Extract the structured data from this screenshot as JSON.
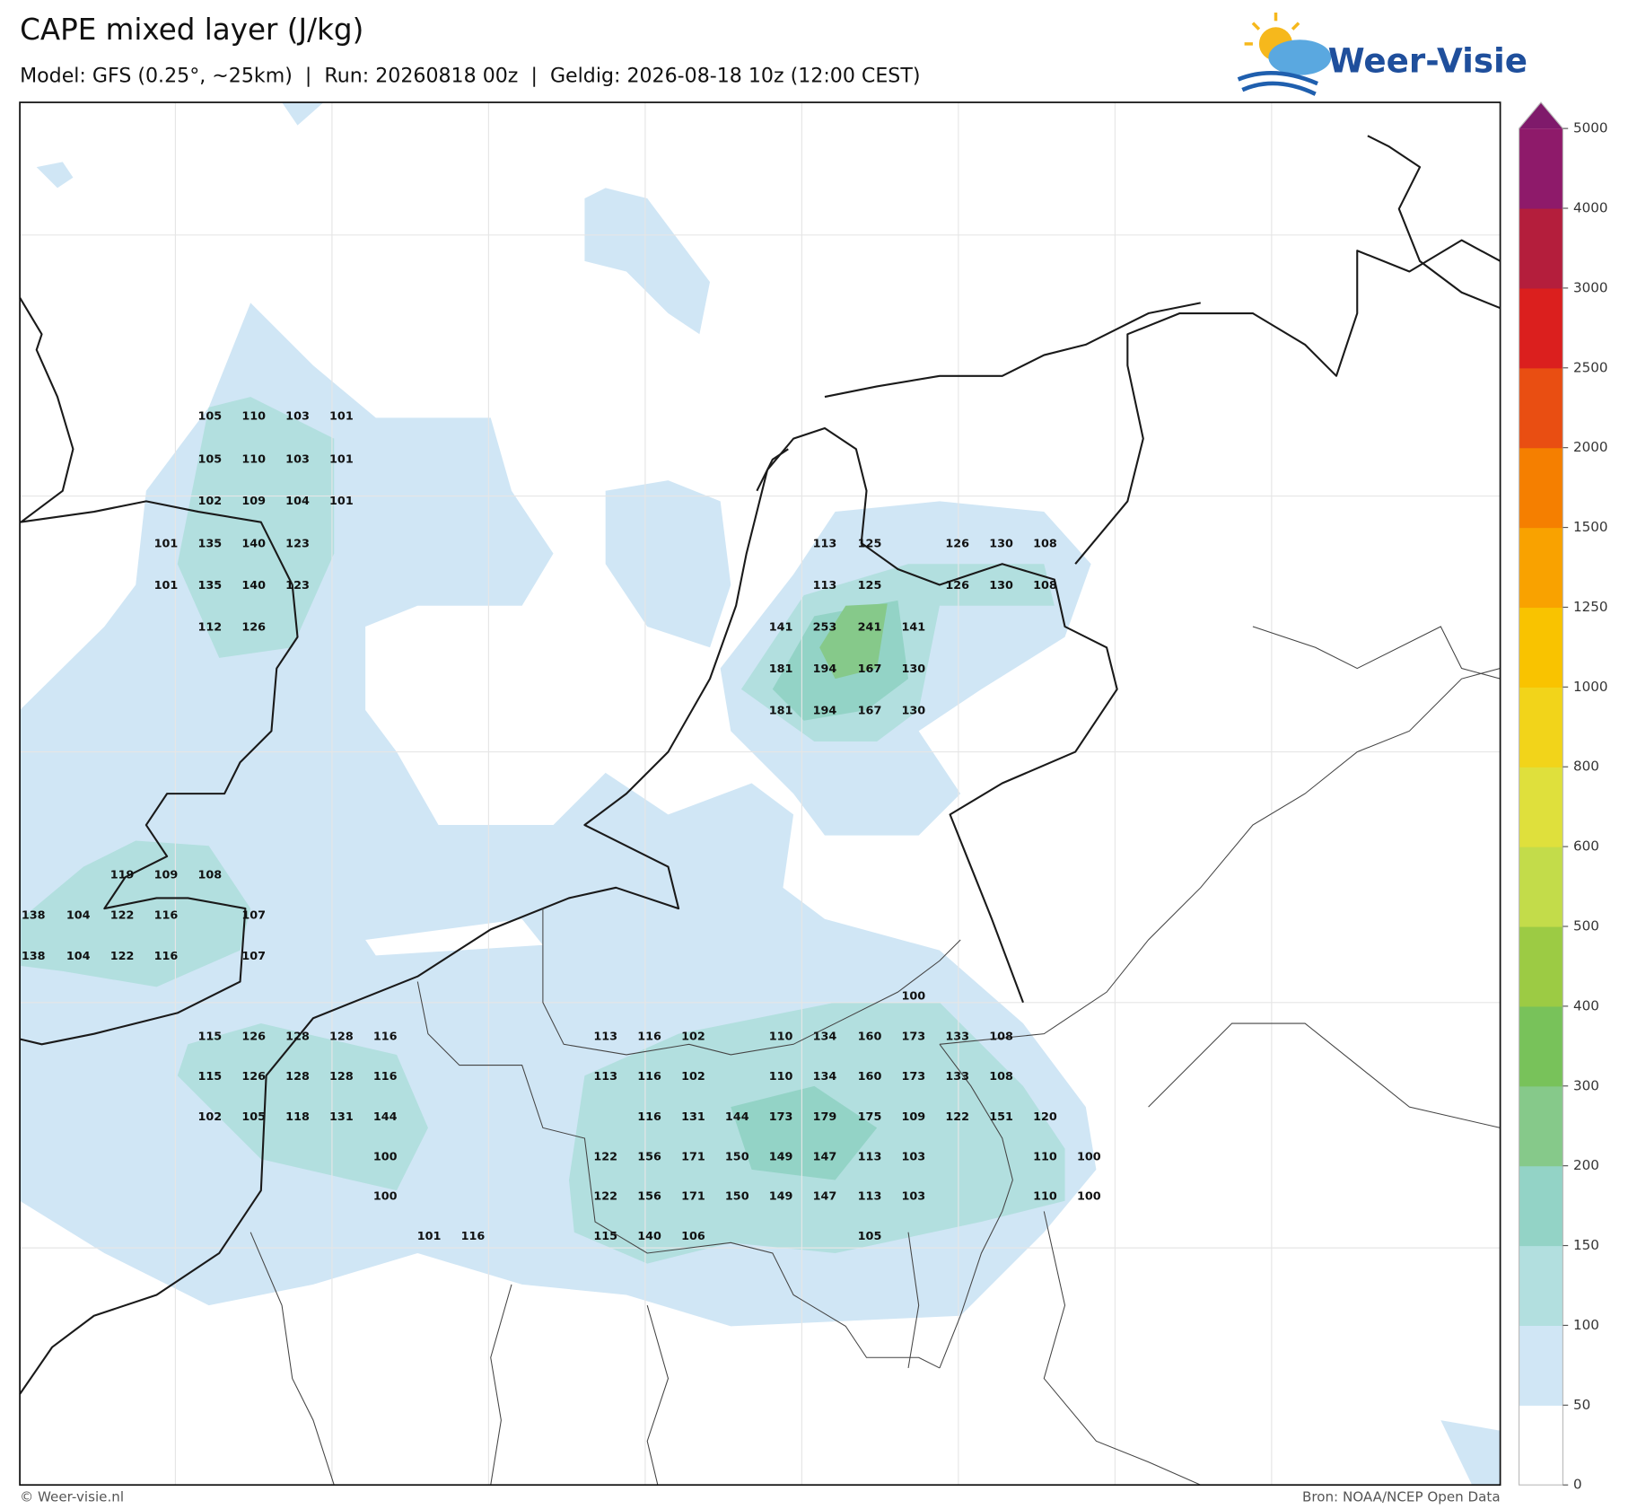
{
  "title": "CAPE mixed layer (J/kg)",
  "subtitle": "Model: GFS (0.25°, ~25km)  |  Run: 20260818 00z  |  Geldig: 2026-08-18 10z (12:00 CEST)",
  "logo": "Weer-Visie",
  "colorbar": {
    "ticks": [
      0,
      50,
      100,
      150,
      200,
      300,
      400,
      500,
      600,
      800,
      1000,
      1250,
      1500,
      2000,
      2500,
      3000,
      4000,
      5000
    ],
    "colors": [
      "#ffffff",
      "#d0e6f5",
      "#b2dfdf",
      "#93d3c6",
      "#86c98a",
      "#78c25a",
      "#9ccb44",
      "#c3dc4a",
      "#dfe03c",
      "#f2d41a",
      "#f9c300",
      "#f9a200",
      "#f57f00",
      "#e94e12",
      "#db1f1e",
      "#b41e3c",
      "#8e1a6a"
    ],
    "extend_color": "#7f1a6b"
  },
  "cape_labels": [
    105,
    110,
    103,
    101,
    105,
    110,
    103,
    101,
    102,
    109,
    104,
    101,
    101,
    135,
    140,
    123,
    113,
    125,
    126,
    130,
    108,
    101,
    135,
    140,
    123,
    113,
    125,
    126,
    130,
    108,
    112,
    126,
    141,
    253,
    241,
    141,
    181,
    194,
    167,
    130,
    181,
    194,
    167,
    130,
    119,
    109,
    108,
    138,
    104,
    122,
    116,
    107,
    138,
    104,
    122,
    116,
    107,
    100,
    115,
    126,
    128,
    128,
    116,
    113,
    116,
    102,
    110,
    134,
    160,
    173,
    133,
    108,
    115,
    126,
    128,
    128,
    116,
    113,
    116,
    102,
    110,
    134,
    160,
    173,
    133,
    108,
    102,
    105,
    118,
    131,
    144,
    116,
    131,
    144,
    173,
    179,
    175,
    109,
    122,
    151,
    120,
    100,
    122,
    156,
    171,
    150,
    149,
    147,
    113,
    103,
    110,
    100,
    100,
    122,
    156,
    171,
    150,
    149,
    147,
    113,
    103,
    110,
    100,
    101,
    116,
    115,
    140,
    106,
    105
  ],
  "footer": {
    "left": "© Weer-visie.nl",
    "right": "Bron: NOAA/NCEP Open Data"
  }
}
